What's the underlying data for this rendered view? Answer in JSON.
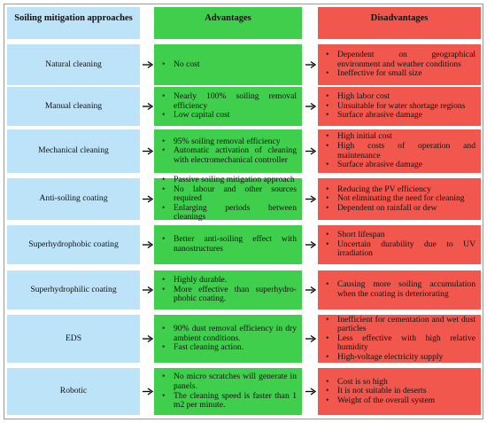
{
  "header": {
    "approach": "Soiling mitigation approaches",
    "advantages": "Advantages",
    "disadvantages": "Disadvantages"
  },
  "rows": [
    {
      "approach": "Natural cleaning",
      "advantages": [
        "No cost"
      ],
      "disadvantages": [
        "Dependent on geographical environment and weather conditions",
        "Ineffective for small size"
      ]
    },
    {
      "approach": "Manual cleaning",
      "advantages": [
        "Nearly 100% soiling removal efficiency",
        "Low capital cost"
      ],
      "disadvantages": [
        "High labor cost",
        "Unsuitable for water shortage regions",
        "Surface abrasive damage"
      ]
    },
    {
      "approach": "Mechanical cleaning",
      "advantages": [
        "95% soiling removal efficiency",
        "Automatic activation of cleaning with electromechanical controller"
      ],
      "disadvantages": [
        "High initial cost",
        "High costs of operation and maintenance",
        "Surface abrasive damage"
      ]
    },
    {
      "approach": "Anti-soiling coating",
      "advantages": [
        "Passive soiling mitigation approach",
        "No labour and other sources required",
        "Enlarging periods between cleanings"
      ],
      "disadvantages": [
        "Reducing the PV efficiency",
        "Not eliminating the need for cleaning",
        "Dependent on rainfall or dew"
      ]
    },
    {
      "approach": "Superhydrophobic coating",
      "advantages": [
        "Better anti-soiling effect with nanostructures"
      ],
      "disadvantages": [
        "Short lifespan",
        "Uncertain durability due to UV irradiation"
      ]
    },
    {
      "approach": "Superhydrophilic coating",
      "advantages": [
        "Highly durable.",
        "More effective than superhydro-phobic coating."
      ],
      "disadvantages": [
        "Causing more soiling accumulation when the coating is deteriorating"
      ]
    },
    {
      "approach": "EDS",
      "advantages": [
        "90% dust removal efficiency in dry ambient conditions.",
        "Fast cleaning action."
      ],
      "disadvantages": [
        "Inefficient for cementation and wet dust particles",
        "Less effective with high relative humidity",
        "High-voltage electricity supply"
      ]
    },
    {
      "approach": "Robotic",
      "advantages": [
        "No micro scratches will generate in panels.",
        "The cleaning speed is faster than 1 m2 per minute."
      ],
      "disadvantages": [
        "Cost is so high",
        "It is not suitable in deserts",
        "Weight of the overall system"
      ]
    }
  ]
}
